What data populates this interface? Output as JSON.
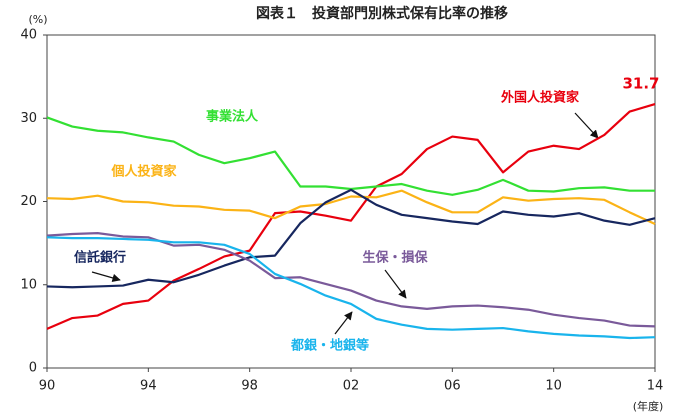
{
  "chart_data": {
    "type": "line",
    "title": "図表１　投資部門別株式保有比率の推移",
    "y_label": "(%)",
    "x_label": "(年度)",
    "categories": [
      "90",
      null,
      null,
      null,
      "94",
      null,
      null,
      null,
      "98",
      null,
      null,
      null,
      "02",
      null,
      null,
      null,
      "06",
      null,
      null,
      null,
      "10",
      null,
      null,
      null,
      "14"
    ],
    "ylim": [
      0,
      40
    ],
    "yticks": [
      0,
      10,
      20,
      30,
      40
    ],
    "series": [
      {
        "name": "外国人投資家",
        "color": "#e8000e",
        "values": [
          4.7,
          6.0,
          6.3,
          7.7,
          8.1,
          10.5,
          11.9,
          13.4,
          14.1,
          18.6,
          18.8,
          18.3,
          17.7,
          21.8,
          23.3,
          26.3,
          27.8,
          27.4,
          23.5,
          26.0,
          26.7,
          26.3,
          28.0,
          30.8,
          31.7
        ]
      },
      {
        "name": "事業法人",
        "color": "#33e033",
        "values": [
          30.1,
          29.0,
          28.5,
          28.3,
          27.7,
          27.2,
          25.6,
          24.6,
          25.2,
          26.0,
          21.8,
          21.8,
          21.5,
          21.8,
          22.1,
          21.3,
          20.8,
          21.4,
          22.6,
          21.3,
          21.2,
          21.6,
          21.7,
          21.3,
          21.3
        ]
      },
      {
        "name": "個人投資家",
        "color": "#fbb316",
        "values": [
          20.4,
          20.3,
          20.7,
          20.0,
          19.9,
          19.5,
          19.4,
          19.0,
          18.9,
          18.0,
          19.4,
          19.7,
          20.6,
          20.5,
          21.3,
          19.9,
          18.7,
          18.7,
          20.5,
          20.1,
          20.3,
          20.4,
          20.2,
          18.7,
          17.3
        ]
      },
      {
        "name": "信託銀行",
        "color": "#17275f",
        "values": [
          9.8,
          9.7,
          9.8,
          9.9,
          10.6,
          10.3,
          11.2,
          12.3,
          13.3,
          13.5,
          17.4,
          19.9,
          21.4,
          19.6,
          18.4,
          18.0,
          17.6,
          17.3,
          18.8,
          18.4,
          18.2,
          18.6,
          17.7,
          17.2,
          18.0
        ]
      },
      {
        "name": "生保・損保",
        "color": "#7a5a9a",
        "values": [
          15.9,
          16.1,
          16.2,
          15.8,
          15.7,
          14.7,
          14.8,
          14.2,
          12.9,
          10.8,
          10.9,
          10.1,
          9.3,
          8.1,
          7.4,
          7.1,
          7.4,
          7.5,
          7.3,
          7.0,
          6.4,
          6.0,
          5.7,
          5.1,
          5.0
        ]
      },
      {
        "name": "都銀・地銀等",
        "color": "#19b4ec",
        "values": [
          15.7,
          15.6,
          15.6,
          15.5,
          15.4,
          15.1,
          15.1,
          14.8,
          13.7,
          11.3,
          10.1,
          8.7,
          7.7,
          5.9,
          5.2,
          4.7,
          4.6,
          4.7,
          4.8,
          4.4,
          4.1,
          3.9,
          3.8,
          3.6,
          3.7
        ]
      }
    ]
  }
}
